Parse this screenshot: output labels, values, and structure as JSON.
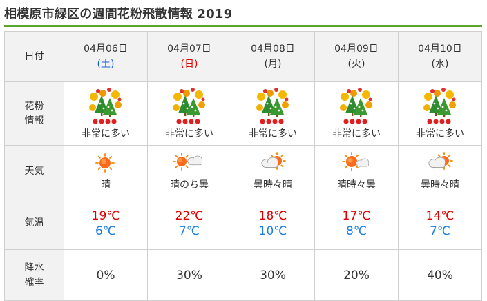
{
  "page": {
    "title": "相模原市緑区の週間花粉飛散情報 2019"
  },
  "row_headers": {
    "date": "日付",
    "pollen_line1": "花粉",
    "pollen_line2": "情報",
    "weather": "天気",
    "temperature": "気温",
    "rain_line1": "降水",
    "rain_line2": "確率"
  },
  "days": [
    {
      "date": "04月06日",
      "dow": "(土)",
      "pollen_level": "非常に多い",
      "pollen_dots": 4,
      "weather": "晴",
      "weather_icon": "sunny-icon",
      "tmax": "19℃",
      "tmin": "6℃",
      "rain": "0%"
    },
    {
      "date": "04月07日",
      "dow": "(日)",
      "pollen_level": "非常に多い",
      "pollen_dots": 4,
      "weather": "晴のち曇",
      "weather_icon": "sun-then-cloud-icon",
      "tmax": "22℃",
      "tmin": "7℃",
      "rain": "30%"
    },
    {
      "date": "04月08日",
      "dow": "(月)",
      "pollen_level": "非常に多い",
      "pollen_dots": 4,
      "weather": "曇時々晴",
      "weather_icon": "cloud-sometimes-sun-icon",
      "tmax": "18℃",
      "tmin": "10℃",
      "rain": "30%"
    },
    {
      "date": "04月09日",
      "dow": "(火)",
      "pollen_level": "非常に多い",
      "pollen_dots": 4,
      "weather": "晴時々曇",
      "weather_icon": "sun-sometimes-cloud-icon",
      "tmax": "17℃",
      "tmin": "8℃",
      "rain": "20%"
    },
    {
      "date": "04月10日",
      "dow": "(水)",
      "pollen_level": "非常に多い",
      "pollen_dots": 4,
      "weather": "曇時々晴",
      "weather_icon": "cloud-sometimes-sun-icon",
      "tmax": "14℃",
      "tmin": "7℃",
      "rain": "40%"
    }
  ],
  "colors": {
    "accent_rule": "#5aa532",
    "saturday": "#1a5fd6",
    "sunday": "#e00000",
    "temp_max": "#e00000",
    "temp_min": "#1a7fe0",
    "pollen_dot": "#e02020"
  }
}
